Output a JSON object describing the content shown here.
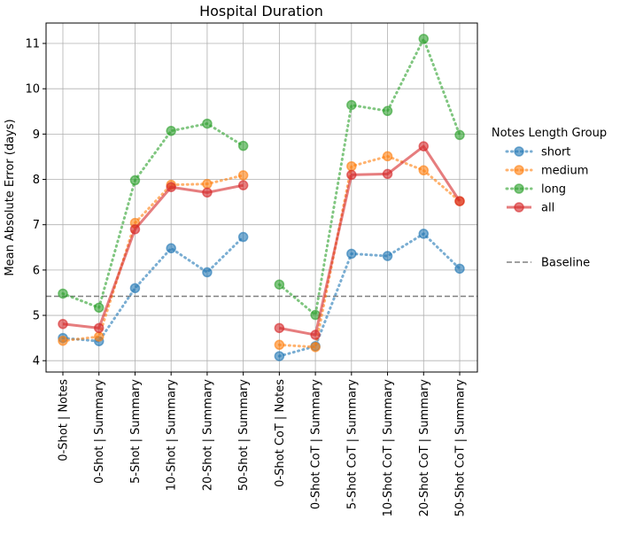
{
  "chart_data": {
    "type": "line",
    "title": "Hospital Duration",
    "xlabel": "",
    "ylabel": "Mean Absolute Error (days)",
    "ylim": [
      3.75,
      11.45
    ],
    "yticks": [
      4,
      5,
      6,
      7,
      8,
      9,
      10,
      11
    ],
    "grid": true,
    "categories": [
      "0-Shot | Notes",
      "0-Shot | Summary",
      "5-Shot | Summary",
      "10-Shot | Summary",
      "20-Shot | Summary",
      "50-Shot | Summary",
      "0-Shot CoT | Notes",
      "0-Shot CoT | Summary",
      "5-Shot CoT | Summary",
      "10-Shot CoT | Summary",
      "20-Shot CoT | Summary",
      "50-Shot CoT | Summary"
    ],
    "segments": [
      [
        0,
        5
      ],
      [
        6,
        11
      ]
    ],
    "legend_title": "Notes Length Group",
    "legend_position": "outside-right",
    "series": [
      {
        "name": "short",
        "color": "#1f77b4",
        "style": "dotted",
        "values": [
          4.5,
          4.43,
          5.6,
          6.48,
          5.95,
          6.73,
          4.1,
          4.32,
          6.36,
          6.31,
          6.8,
          6.03
        ]
      },
      {
        "name": "medium",
        "color": "#ff7f0e",
        "style": "dotted",
        "values": [
          4.44,
          4.53,
          7.04,
          7.88,
          7.9,
          8.09,
          4.35,
          4.3,
          8.29,
          8.51,
          8.2,
          7.52
        ]
      },
      {
        "name": "long",
        "color": "#2ca02c",
        "style": "dotted",
        "values": [
          5.48,
          5.17,
          7.98,
          9.07,
          9.23,
          8.74,
          5.68,
          5.01,
          9.64,
          9.51,
          11.1,
          8.98
        ]
      },
      {
        "name": "all",
        "color": "#d62728",
        "style": "solid",
        "values": [
          4.81,
          4.72,
          6.9,
          7.83,
          7.71,
          7.87,
          4.72,
          4.57,
          8.1,
          8.12,
          8.73,
          7.52
        ]
      }
    ],
    "baseline": {
      "name": "Baseline",
      "value": 5.42,
      "color": "#808080",
      "style": "dashed"
    }
  }
}
